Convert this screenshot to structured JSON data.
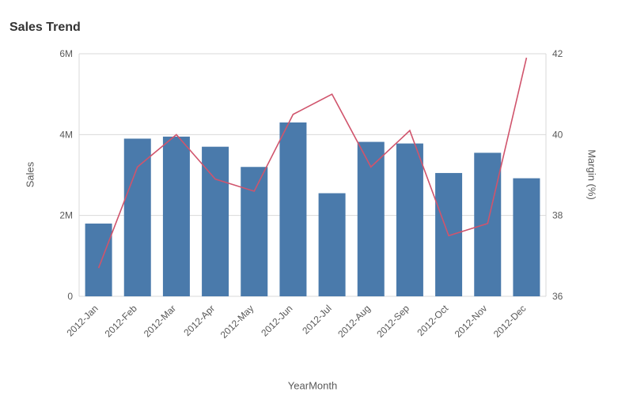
{
  "chart_data": {
    "type": "bar",
    "subtype": "combo-bar-line",
    "title": "Sales Trend",
    "xlabel": "YearMonth",
    "ylabel_left": "Sales",
    "ylabel_right": "Margin (%)",
    "categories": [
      "2012-Jan",
      "2012-Feb",
      "2012-Mar",
      "2012-Apr",
      "2012-May",
      "2012-Jun",
      "2012-Jul",
      "2012-Aug",
      "2012-Sep",
      "2012-Oct",
      "2012-Nov",
      "2012-Dec"
    ],
    "series": [
      {
        "name": "Sales",
        "type": "bar",
        "axis": "left",
        "values": [
          1800000,
          3900000,
          3950000,
          3700000,
          3200000,
          4300000,
          2550000,
          3820000,
          3780000,
          3050000,
          3550000,
          2920000
        ]
      },
      {
        "name": "Margin (%)",
        "type": "line",
        "axis": "right",
        "values": [
          36.7,
          39.2,
          40.0,
          38.9,
          38.6,
          40.5,
          41.0,
          39.2,
          40.1,
          37.5,
          37.8,
          41.9
        ]
      }
    ],
    "left_axis": {
      "min": 0,
      "max": 6000000,
      "tick_labels": [
        "0",
        "2M",
        "4M",
        "6M"
      ]
    },
    "right_axis": {
      "min": 36,
      "max": 42,
      "tick_labels": [
        "36",
        "38",
        "40",
        "42"
      ]
    },
    "grid": true,
    "legend": "none",
    "colors": {
      "bar": "#4a7aab",
      "line": "#d0546c",
      "grid": "#d9d9d9",
      "axis_text": "#595959",
      "title_text": "#333333"
    }
  }
}
